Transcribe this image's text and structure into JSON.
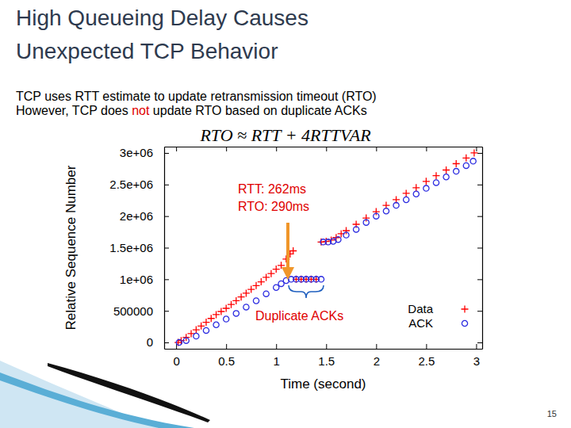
{
  "chart_data": {
    "type": "scatter",
    "title": "High Queueing Delay Causes Unexpected TCP Behavior",
    "subtitle_lines": [
      [
        {
          "text": "TCP uses RTT estimate to update retransmission timeout (RTO)"
        }
      ],
      [
        {
          "text": "However, TCP does "
        },
        {
          "text": "not",
          "color": "#e00000"
        },
        {
          "text": " update RTO based on duplicate ACKs"
        }
      ]
    ],
    "formula": "RTO ≈ RTT + 4RTTVAR",
    "annotations": [
      {
        "text": "RTT: 262ms",
        "color": "#e00000"
      },
      {
        "text": "RTO: 290ms",
        "color": "#e00000"
      },
      {
        "text": "Duplicate ACKs",
        "color": "#e00000"
      }
    ],
    "x_label": "Time (second)",
    "y_label": "Relative Sequence Number",
    "xlim": [
      -0.12,
      3.06
    ],
    "ylim": [
      -100000,
      3100000
    ],
    "xticks": [
      0,
      0.5,
      1,
      1.5,
      2,
      2.5,
      3
    ],
    "yticks": [
      0,
      500000,
      {
        "value": 1000000,
        "label": "1e+06"
      },
      {
        "value": 1500000,
        "label": "1.5e+06"
      },
      {
        "value": 2000000,
        "label": "2e+06"
      },
      {
        "value": 2500000,
        "label": "2.5e+06"
      },
      {
        "value": 3000000,
        "label": "3e+06"
      }
    ],
    "grid": false,
    "legend": "lower right",
    "series": [
      {
        "name": "Data",
        "color": "#ff0000",
        "marker": "plus",
        "x": [
          0.02,
          0.05,
          0.1,
          0.15,
          0.2,
          0.25,
          0.3,
          0.35,
          0.4,
          0.45,
          0.5,
          0.55,
          0.6,
          0.65,
          0.7,
          0.75,
          0.8,
          0.85,
          0.9,
          0.95,
          1.0,
          1.05,
          1.1,
          1.14,
          1.17,
          1.2,
          1.25,
          1.3,
          1.35,
          1.4,
          1.45,
          1.5,
          1.55,
          1.6,
          1.65,
          1.7,
          1.8,
          1.9,
          2.0,
          2.1,
          2.2,
          2.3,
          2.4,
          2.5,
          2.6,
          2.7,
          2.8,
          2.9,
          2.98
        ],
        "values": [
          0,
          30000,
          80000,
          140000,
          200000,
          260000,
          320000,
          380000,
          440000,
          490000,
          540000,
          600000,
          660000,
          720000,
          780000,
          840000,
          900000,
          960000,
          1030000,
          1090000,
          1160000,
          1220000,
          1320000,
          1400000,
          1450000,
          1000000,
          1000000,
          1000000,
          1000000,
          1000000,
          1590000,
          1600000,
          1620000,
          1660000,
          1720000,
          1770000,
          1870000,
          1970000,
          2070000,
          2170000,
          2260000,
          2360000,
          2450000,
          2550000,
          2640000,
          2730000,
          2830000,
          2920000,
          3000000
        ]
      },
      {
        "name": "ACK",
        "color": "#2b2be0",
        "marker": "circle",
        "x": [
          0.03,
          0.1,
          0.2,
          0.3,
          0.4,
          0.5,
          0.6,
          0.7,
          0.8,
          0.9,
          1.0,
          1.05,
          1.1,
          1.15,
          1.2,
          1.25,
          1.3,
          1.35,
          1.4,
          1.45,
          1.47,
          1.52,
          1.57,
          1.62,
          1.7,
          1.8,
          1.9,
          2.0,
          2.1,
          2.2,
          2.3,
          2.4,
          2.5,
          2.6,
          2.7,
          2.8,
          2.9,
          2.97
        ],
        "values": [
          0,
          30000,
          100000,
          190000,
          280000,
          370000,
          460000,
          560000,
          660000,
          770000,
          870000,
          930000,
          980000,
          1000000,
          1000000,
          1000000,
          1000000,
          1000000,
          1000000,
          1000000,
          1590000,
          1590000,
          1600000,
          1630000,
          1700000,
          1790000,
          1900000,
          2000000,
          2080000,
          2170000,
          2260000,
          2350000,
          2440000,
          2530000,
          2620000,
          2710000,
          2800000,
          2870000
        ]
      }
    ],
    "page_number": 15
  }
}
